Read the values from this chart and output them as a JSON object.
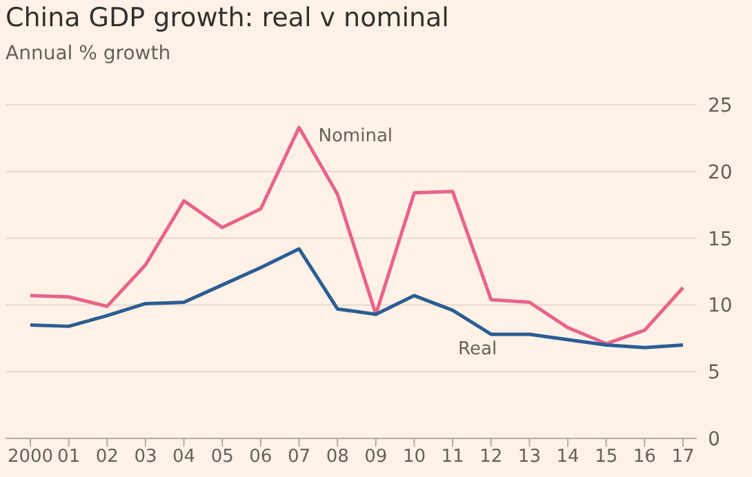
{
  "chart_data": {
    "type": "line",
    "title": "China GDP growth: real v nominal",
    "subtitle": "Annual % growth",
    "categories": [
      "2000",
      "01",
      "02",
      "03",
      "04",
      "05",
      "06",
      "07",
      "08",
      "09",
      "10",
      "11",
      "12",
      "13",
      "14",
      "15",
      "16",
      "17"
    ],
    "series": [
      {
        "name": "Nominal",
        "color": "#e8638b",
        "values": [
          10.7,
          10.6,
          9.9,
          13.0,
          17.8,
          15.8,
          17.2,
          23.3,
          18.3,
          9.3,
          18.4,
          18.5,
          10.4,
          10.2,
          8.3,
          7.1,
          8.1,
          11.3
        ]
      },
      {
        "name": "Real",
        "color": "#2a5d94",
        "values": [
          8.5,
          8.4,
          9.2,
          10.1,
          10.2,
          11.5,
          12.8,
          14.2,
          9.7,
          9.3,
          10.7,
          9.6,
          7.8,
          7.8,
          7.4,
          7.0,
          6.8,
          7.0
        ]
      }
    ],
    "ylim": [
      0,
      25
    ],
    "yticks": [
      0,
      5,
      10,
      15,
      20,
      25
    ],
    "grid": "y",
    "legend": false,
    "marker": "none",
    "line_style": "solid"
  }
}
